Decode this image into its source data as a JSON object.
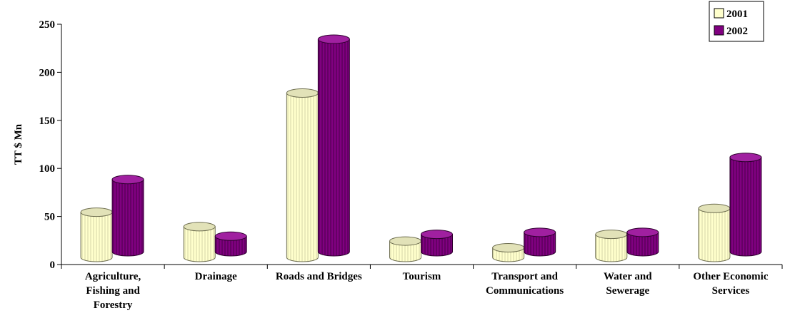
{
  "chart_data": {
    "type": "bar",
    "title": "",
    "xlabel": "",
    "ylabel": "TT $ Mn",
    "ylim": [
      0,
      250
    ],
    "yticks": [
      0,
      50,
      100,
      150,
      200,
      250
    ],
    "categories": [
      [
        "Agriculture,",
        "Fishing and",
        "Forestry"
      ],
      [
        "Drainage"
      ],
      [
        "Roads and Bridges"
      ],
      [
        "Tourism"
      ],
      [
        "Transport and",
        "Communications"
      ],
      [
        "Water and",
        "Sewerage"
      ],
      [
        "Other Economic",
        "Services"
      ]
    ],
    "series": [
      {
        "name": "2001",
        "values": [
          47,
          32,
          171,
          17,
          10,
          24,
          51
        ],
        "color": "#FFFFCC"
      },
      {
        "name": "2002",
        "values": [
          84,
          25,
          230,
          27,
          29,
          29,
          107
        ],
        "color": "#800080"
      }
    ],
    "legend_position": "top-right",
    "grid": false
  }
}
